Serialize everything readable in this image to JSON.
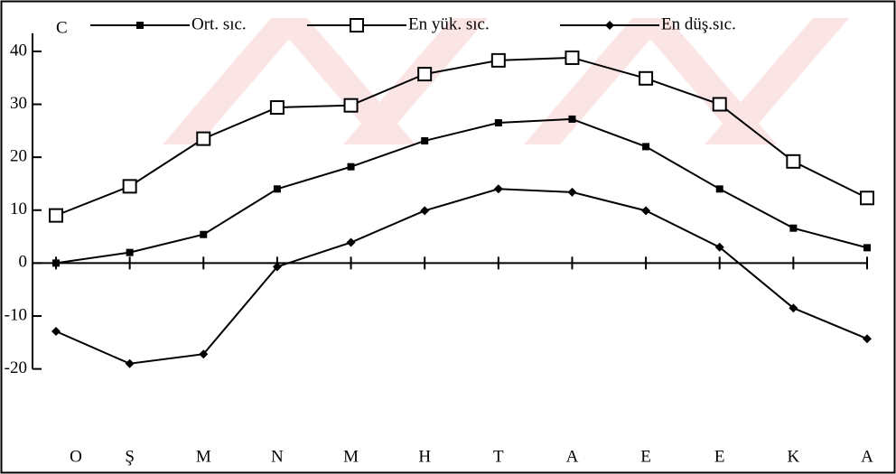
{
  "chart_data": {
    "type": "line",
    "y_label": "C",
    "categories": [
      "O",
      "Ş",
      "M",
      "N",
      "M",
      "H",
      "T",
      "A",
      "E",
      "E",
      "K",
      "A"
    ],
    "series": [
      {
        "name": "Ort. sıc.",
        "color": "#000000",
        "marker": "square",
        "values": [
          0,
          2,
          5.4,
          14,
          18.2,
          23.1,
          26.5,
          27.2,
          22,
          14,
          6.6,
          2.9
        ]
      },
      {
        "name": "En yük. sıc.",
        "color": "#000000",
        "marker": "open-square",
        "values": [
          9,
          14.5,
          23.5,
          29.4,
          29.8,
          35.7,
          38.3,
          38.8,
          34.9,
          30,
          19.2,
          12.3
        ]
      },
      {
        "name": "En düş.sıc.",
        "color": "#000000",
        "marker": "diamond",
        "values": [
          -12.9,
          -19,
          -17.2,
          -0.7,
          3.9,
          9.9,
          14,
          13.4,
          9.9,
          3,
          -8.5,
          -14.3
        ]
      }
    ],
    "ylim": [
      -39,
      48
    ],
    "yticks": [
      40,
      30,
      20,
      10,
      0,
      -10,
      -20
    ],
    "legend": "top"
  }
}
